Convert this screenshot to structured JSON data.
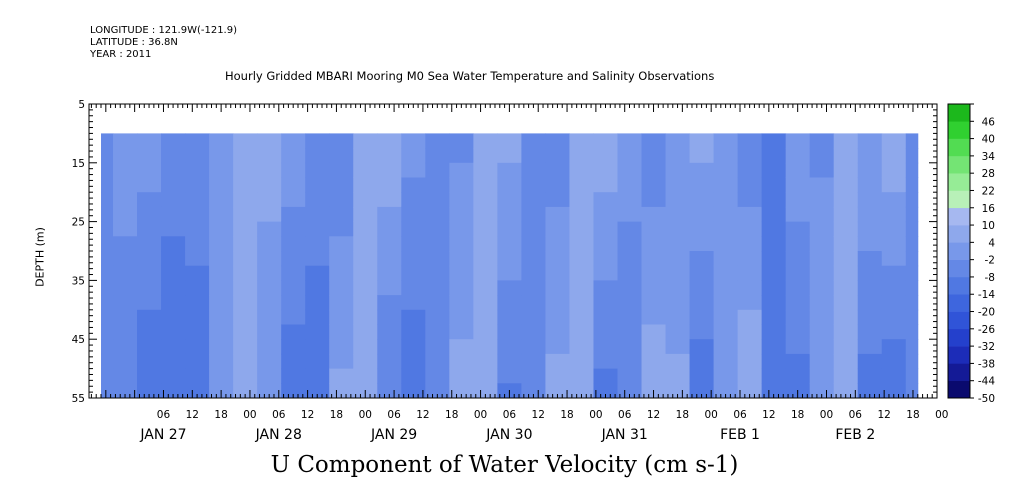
{
  "header": {
    "longitude": "LONGITUDE : 121.9W(-121.9)",
    "latitude": "LATITUDE : 36.8N",
    "year": "YEAR : 2011"
  },
  "chart_data": {
    "type": "heatmap",
    "title": "Hourly Gridded MBARI Mooring M0 Sea Water Temperature and Salinity Observations",
    "xlabel": "U Component of Water Velocity (cm s-1)",
    "ylabel": "DEPTH (m)",
    "ylim": [
      55,
      5
    ],
    "y_tick_labels": [
      "5",
      "15",
      "25",
      "35",
      "45",
      "55"
    ],
    "x_hour_labels": [
      "06",
      "12",
      "18",
      "00",
      "06",
      "12",
      "18",
      "00",
      "06",
      "12",
      "18",
      "00",
      "06",
      "12",
      "18",
      "00",
      "06",
      "12",
      "18",
      "00",
      "06",
      "12",
      "18",
      "00",
      "06",
      "12",
      "18",
      "00"
    ],
    "x_date_labels": [
      "JAN 27",
      "JAN 28",
      "JAN 29",
      "JAN 30",
      "JAN 31",
      "FEB  1",
      "FEB  2"
    ],
    "colorbar_labels": [
      "46",
      "40",
      "34",
      "28",
      "22",
      "16",
      "10",
      "4",
      "-2",
      "-8",
      "-14",
      "-20",
      "-26",
      "-32",
      "-38",
      "-44",
      "-50"
    ],
    "colorbar_range": [
      -50,
      52
    ],
    "data_depth_range": [
      10,
      55
    ],
    "data_time_range_hours": [
      -7,
      163
    ],
    "time_origin": "JAN 27 00",
    "time_step_hours": 5,
    "depth_step_m": 2.5,
    "column_hours": [
      -7,
      -2,
      3,
      8,
      13,
      18,
      23,
      28,
      33,
      38,
      43,
      48,
      53,
      58,
      63,
      68,
      73,
      78,
      83,
      88,
      93,
      98,
      103,
      108,
      113,
      118,
      123,
      128,
      133,
      138,
      143,
      148,
      153,
      158,
      163
    ],
    "u_surface": [
      -3,
      2,
      1,
      -4,
      -7,
      -2,
      5,
      7,
      2,
      -6,
      -6,
      4,
      8,
      0,
      -5,
      -3,
      5,
      6,
      -6,
      -5,
      4,
      8,
      0,
      -6,
      -2,
      6,
      3,
      -6,
      -8,
      2,
      -3,
      10,
      4,
      8,
      -2
    ],
    "u_deep": [
      -4,
      -8,
      -12,
      -14,
      -9,
      4,
      8,
      -2,
      -12,
      -10,
      5,
      9,
      -8,
      -12,
      -4,
      6,
      7,
      -9,
      -8,
      6,
      4,
      -10,
      -6,
      8,
      5,
      -12,
      2,
      9,
      -9,
      -10,
      4,
      8,
      -10,
      -12,
      -4
    ]
  }
}
